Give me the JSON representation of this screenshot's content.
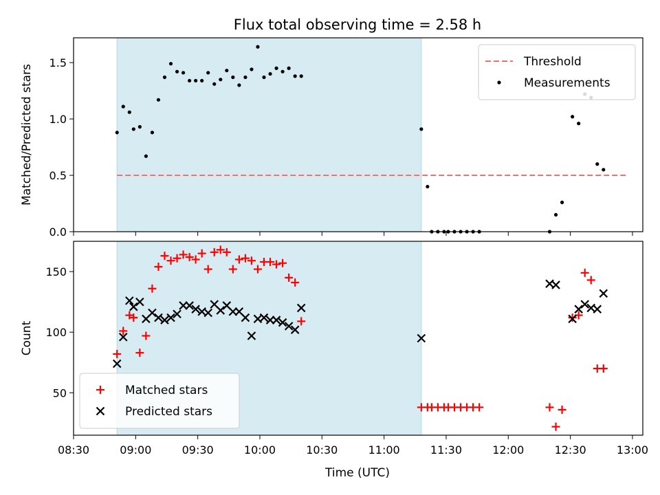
{
  "chart_data": {
    "type": "scatter",
    "title": "Flux total observing time = 2.58 h",
    "xlabel": "Time (UTC)",
    "x_ticks": [
      "08:30",
      "09:00",
      "09:30",
      "10:00",
      "10:30",
      "11:00",
      "11:30",
      "12:00",
      "12:30",
      "13:00"
    ],
    "xlim": [
      "08:30",
      "13:05"
    ],
    "shaded_interval": [
      "08:51",
      "11:18"
    ],
    "panels": [
      {
        "ylabel": "Matched/Predicted stars",
        "ylim": [
          0.0,
          1.72
        ],
        "yticks": [
          "0.0",
          "0.5",
          "1.0",
          "1.5"
        ],
        "legend_position": "top-right",
        "threshold": {
          "name": "Threshold",
          "y": 0.5,
          "x_range": [
            "08:51",
            "12:57"
          ],
          "color": "#ff6b6b"
        },
        "series": [
          {
            "name": "Measurements",
            "marker": "dot",
            "color": "#000000",
            "points": [
              [
                "08:51",
                0.88
              ],
              [
                "08:54",
                1.11
              ],
              [
                "08:57",
                1.06
              ],
              [
                "08:59",
                0.91
              ],
              [
                "09:02",
                0.93
              ],
              [
                "09:05",
                0.67
              ],
              [
                "09:08",
                0.88
              ],
              [
                "09:11",
                1.17
              ],
              [
                "09:14",
                1.37
              ],
              [
                "09:17",
                1.49
              ],
              [
                "09:20",
                1.42
              ],
              [
                "09:23",
                1.41
              ],
              [
                "09:26",
                1.34
              ],
              [
                "09:29",
                1.34
              ],
              [
                "09:32",
                1.34
              ],
              [
                "09:35",
                1.41
              ],
              [
                "09:38",
                1.31
              ],
              [
                "09:41",
                1.35
              ],
              [
                "09:44",
                1.43
              ],
              [
                "09:47",
                1.37
              ],
              [
                "09:50",
                1.3
              ],
              [
                "09:53",
                1.37
              ],
              [
                "09:56",
                1.44
              ],
              [
                "09:59",
                1.64
              ],
              [
                "10:02",
                1.37
              ],
              [
                "10:05",
                1.4
              ],
              [
                "10:08",
                1.45
              ],
              [
                "10:11",
                1.42
              ],
              [
                "10:14",
                1.45
              ],
              [
                "10:17",
                1.38
              ],
              [
                "10:20",
                1.38
              ],
              [
                "11:18",
                0.91
              ],
              [
                "11:21",
                0.4
              ],
              [
                "11:23",
                0.0
              ],
              [
                "11:26",
                0.0
              ],
              [
                "11:29",
                0.0
              ],
              [
                "11:31",
                0.0
              ],
              [
                "11:34",
                0.0
              ],
              [
                "11:37",
                0.0
              ],
              [
                "11:40",
                0.0
              ],
              [
                "11:43",
                0.0
              ],
              [
                "11:46",
                0.0
              ],
              [
                "12:20",
                0.0
              ],
              [
                "12:23",
                0.15
              ],
              [
                "12:26",
                0.26
              ],
              [
                "12:31",
                1.02
              ],
              [
                "12:34",
                0.96
              ],
              [
                "12:37",
                1.22
              ],
              [
                "12:40",
                1.19
              ],
              [
                "12:43",
                0.6
              ],
              [
                "12:46",
                0.55
              ]
            ]
          }
        ]
      },
      {
        "ylabel": "Count",
        "ylim": [
          15,
          175
        ],
        "yticks": [
          "50",
          "100",
          "150"
        ],
        "legend_position": "bottom-left",
        "series": [
          {
            "name": "Matched stars",
            "marker": "plus",
            "color": "#ff0000",
            "points": [
              [
                "08:51",
                82
              ],
              [
                "08:54",
                101
              ],
              [
                "08:57",
                114
              ],
              [
                "08:59",
                112
              ],
              [
                "09:02",
                83
              ],
              [
                "09:05",
                97
              ],
              [
                "09:08",
                136
              ],
              [
                "09:11",
                154
              ],
              [
                "09:14",
                163
              ],
              [
                "09:17",
                159
              ],
              [
                "09:20",
                161
              ],
              [
                "09:23",
                164
              ],
              [
                "09:26",
                162
              ],
              [
                "09:29",
                160
              ],
              [
                "09:32",
                165
              ],
              [
                "09:35",
                152
              ],
              [
                "09:38",
                166
              ],
              [
                "09:41",
                168
              ],
              [
                "09:44",
                166
              ],
              [
                "09:47",
                152
              ],
              [
                "09:50",
                160
              ],
              [
                "09:53",
                161
              ],
              [
                "09:56",
                159
              ],
              [
                "09:59",
                152
              ],
              [
                "10:02",
                158
              ],
              [
                "10:05",
                158
              ],
              [
                "10:08",
                156
              ],
              [
                "10:11",
                157
              ],
              [
                "10:14",
                145
              ],
              [
                "10:17",
                141
              ],
              [
                "10:20",
                109
              ],
              [
                "11:18",
                38
              ],
              [
                "11:21",
                38
              ],
              [
                "11:23",
                38
              ],
              [
                "11:26",
                38
              ],
              [
                "11:29",
                38
              ],
              [
                "11:31",
                38
              ],
              [
                "11:34",
                38
              ],
              [
                "11:37",
                38
              ],
              [
                "11:40",
                38
              ],
              [
                "11:43",
                38
              ],
              [
                "11:46",
                38
              ],
              [
                "12:20",
                38
              ],
              [
                "12:23",
                22
              ],
              [
                "12:26",
                36
              ],
              [
                "12:31",
                112
              ],
              [
                "12:34",
                114
              ],
              [
                "12:37",
                149
              ],
              [
                "12:40",
                143
              ],
              [
                "12:43",
                70
              ],
              [
                "12:46",
                70
              ]
            ]
          },
          {
            "name": "Predicted stars",
            "marker": "x",
            "color": "#000000",
            "points": [
              [
                "08:51",
                74
              ],
              [
                "08:54",
                96
              ],
              [
                "08:57",
                126
              ],
              [
                "08:59",
                121
              ],
              [
                "09:02",
                125
              ],
              [
                "09:05",
                111
              ],
              [
                "09:08",
                116
              ],
              [
                "09:11",
                112
              ],
              [
                "09:14",
                110
              ],
              [
                "09:17",
                112
              ],
              [
                "09:20",
                115
              ],
              [
                "09:23",
                122
              ],
              [
                "09:26",
                122
              ],
              [
                "09:29",
                119
              ],
              [
                "09:32",
                117
              ],
              [
                "09:35",
                116
              ],
              [
                "09:38",
                123
              ],
              [
                "09:41",
                118
              ],
              [
                "09:44",
                122
              ],
              [
                "09:47",
                117
              ],
              [
                "09:50",
                117
              ],
              [
                "09:53",
                112
              ],
              [
                "09:56",
                97
              ],
              [
                "09:59",
                111
              ],
              [
                "10:02",
                112
              ],
              [
                "10:05",
                110
              ],
              [
                "10:08",
                110
              ],
              [
                "10:11",
                108
              ],
              [
                "10:14",
                105
              ],
              [
                "10:17",
                102
              ],
              [
                "10:20",
                120
              ],
              [
                "11:18",
                95
              ],
              [
                "12:20",
                140
              ],
              [
                "12:23",
                139
              ],
              [
                "12:31",
                111
              ],
              [
                "12:34",
                119
              ],
              [
                "12:37",
                123
              ],
              [
                "12:40",
                120
              ],
              [
                "12:43",
                119
              ],
              [
                "12:46",
                132
              ]
            ]
          }
        ]
      }
    ]
  }
}
